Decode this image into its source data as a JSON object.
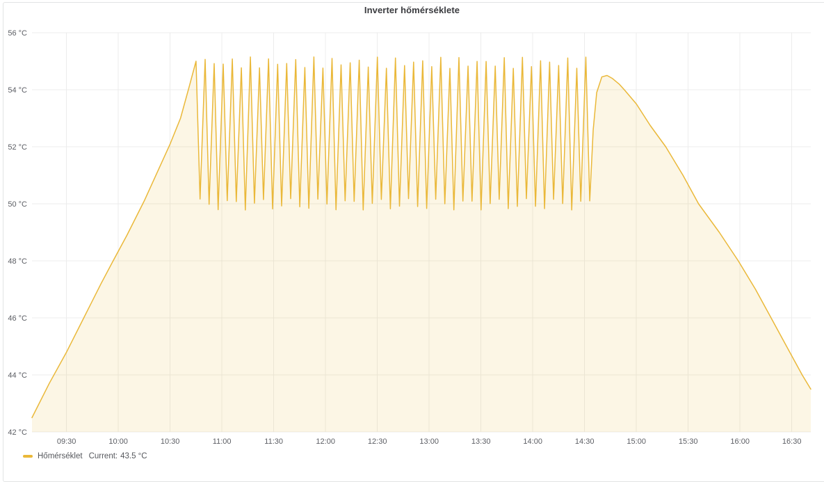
{
  "panel": {
    "title": "Inverter hőmérséklete"
  },
  "legend": {
    "series_label": "Hőmérséklet",
    "current_label": "Current:",
    "current_value": "43.5 °C"
  },
  "colors": {
    "accent": "#EAB839",
    "grid": "#ececec",
    "axis_text": "#5b5d63",
    "title_text": "#3a3b3f",
    "panel_border": "#e2e3e4",
    "background": "#ffffff"
  },
  "chart_data": {
    "type": "line",
    "title": "Inverter hőmérséklete",
    "xlabel": "",
    "ylabel": "",
    "unit": "°C",
    "grid": true,
    "legend_position": "bottom-left",
    "ylim": [
      42,
      56
    ],
    "y_tick_step": 2,
    "y_tick_suffix": " °C",
    "x_range": [
      "09:10",
      "16:41"
    ],
    "x_ticks": [
      "09:30",
      "10:00",
      "10:30",
      "11:00",
      "11:30",
      "12:00",
      "12:30",
      "13:00",
      "13:30",
      "14:00",
      "14:30",
      "15:00",
      "15:30",
      "16:00",
      "16:30"
    ],
    "series": [
      {
        "name": "Hőmérséklet",
        "color": "#EAB839",
        "fill_opacity": 0.13,
        "line_width": 1.5,
        "current_value_c": 43.5,
        "segments": {
          "rise": [
            [
              "09:10",
              42.5
            ],
            [
              "09:20",
              43.7
            ],
            [
              "09:30",
              44.8
            ],
            [
              "09:40",
              46.0
            ],
            [
              "09:50",
              47.2
            ],
            [
              "09:57",
              48.0
            ],
            [
              "10:05",
              48.9
            ],
            [
              "10:15",
              50.1
            ],
            [
              "10:24",
              51.3
            ],
            [
              "10:30",
              52.1
            ],
            [
              "10:36",
              53.0
            ],
            [
              "10:41",
              54.1
            ],
            [
              "10:45",
              55.0
            ]
          ],
          "oscillation": {
            "start": "10:45",
            "end": "14:33",
            "period_min": 5.25,
            "trough_phase": 0.44,
            "peak": 55.0,
            "trough": 50.0,
            "peak_jitter": 0.2,
            "trough_jitter": 0.2
          },
          "fall": [
            [
              "14:33",
              50.1
            ],
            [
              "14:35",
              52.6
            ],
            [
              "14:37",
              53.9
            ],
            [
              "14:40",
              54.45
            ],
            [
              "14:43",
              54.5
            ],
            [
              "14:46",
              54.4
            ],
            [
              "14:50",
              54.2
            ],
            [
              "14:53",
              54.0
            ],
            [
              "15:00",
              53.5
            ],
            [
              "15:08",
              52.75
            ],
            [
              "15:17",
              52.0
            ],
            [
              "15:27",
              51.0
            ],
            [
              "15:36",
              50.0
            ],
            [
              "15:48",
              49.0
            ],
            [
              "15:59",
              48.0
            ],
            [
              "16:09",
              47.0
            ],
            [
              "16:18",
              46.0
            ],
            [
              "16:27",
              45.0
            ],
            [
              "16:36",
              44.0
            ],
            [
              "16:41",
              43.5
            ]
          ]
        }
      }
    ]
  }
}
